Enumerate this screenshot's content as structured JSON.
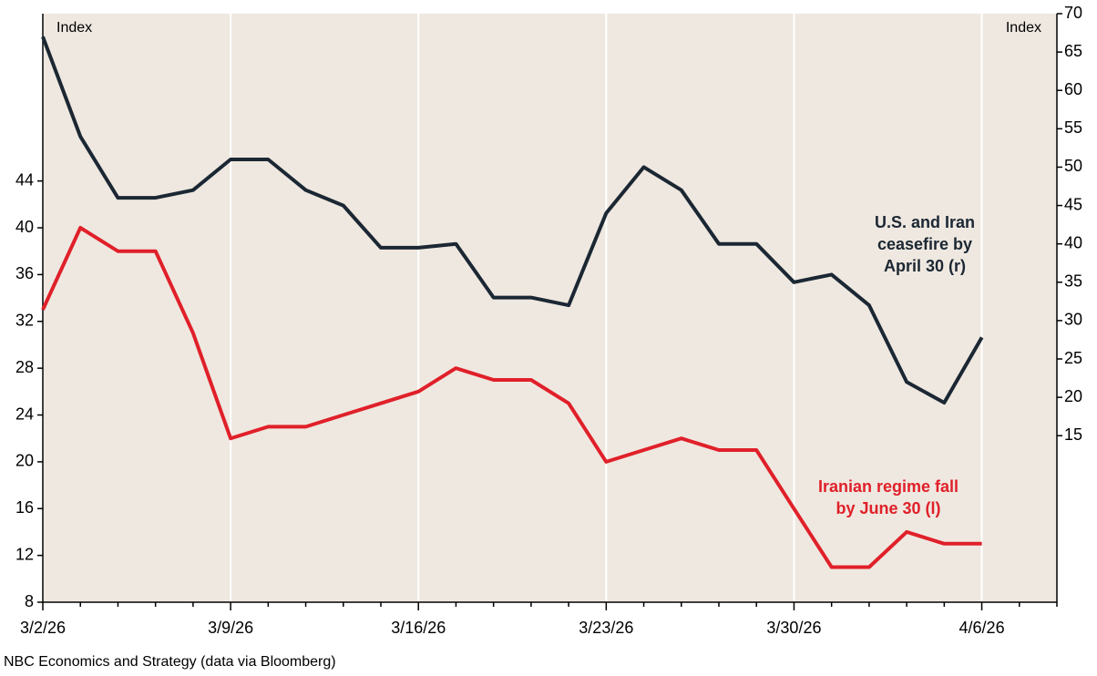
{
  "chart_data": {
    "type": "line",
    "y_label": "Index",
    "y2_label": "Index",
    "source": "NBC Economics and Strategy (data via Bloomberg)",
    "categories": [
      "3/2/26",
      null,
      null,
      null,
      null,
      "3/9/26",
      null,
      null,
      null,
      null,
      "3/16/26",
      null,
      null,
      null,
      null,
      "3/23/26",
      null,
      null,
      null,
      null,
      "3/30/26",
      null,
      null,
      null,
      null,
      "4/6/26",
      null,
      null
    ],
    "series": [
      {
        "annotation": [
          "Iranian regime fall",
          "by June 30 (l)"
        ],
        "color": "#e0202a",
        "axis": "y",
        "values": [
          33,
          40,
          38,
          38,
          31,
          22,
          23,
          23,
          24,
          25,
          26,
          28,
          27,
          27,
          25,
          20,
          21,
          22,
          21,
          21,
          16,
          11,
          11,
          14,
          13,
          13,
          null,
          null
        ]
      },
      {
        "annotation": [
          "U.S. and Iran",
          "ceasefire by",
          "April 30 (r)"
        ],
        "color": "#1b2733",
        "axis": "y2",
        "values": [
          67,
          54,
          46,
          46,
          47,
          51,
          51,
          47,
          45,
          39.5,
          39.5,
          40,
          33,
          33,
          32,
          44,
          50,
          47,
          40,
          40,
          35,
          36,
          32,
          22,
          19.3,
          27.8,
          null,
          null
        ]
      }
    ],
    "ylim": [
      8,
      58.3
    ],
    "yticks": [
      8,
      12,
      16,
      20,
      24,
      28,
      32,
      36,
      40,
      44
    ],
    "y2lim": [
      -6.7,
      70
    ],
    "y2ticks": [
      15,
      20,
      25,
      30,
      35,
      40,
      45,
      50,
      55,
      60,
      65,
      70
    ],
    "xgrid": true,
    "background": "#efe8e0"
  }
}
